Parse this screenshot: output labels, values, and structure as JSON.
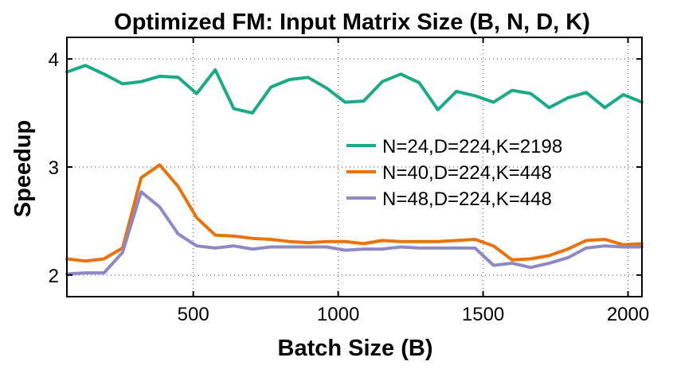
{
  "chart_data": {
    "type": "line",
    "title": "Optimized FM: Input Matrix Size (B, N, D, K)",
    "xlabel": "Batch Size (B)",
    "ylabel": "Speedup",
    "xlim": [
      64,
      2048
    ],
    "ylim": [
      1.8,
      4.2
    ],
    "xticks": [
      500,
      1000,
      1500,
      2000
    ],
    "yticks": [
      2,
      3,
      4
    ],
    "grid": true,
    "grid_style": "dotted",
    "legend_position": "center-right",
    "x": [
      64,
      128,
      192,
      256,
      320,
      384,
      448,
      512,
      576,
      640,
      704,
      768,
      832,
      896,
      960,
      1024,
      1088,
      1152,
      1216,
      1280,
      1344,
      1408,
      1472,
      1536,
      1600,
      1664,
      1728,
      1792,
      1856,
      1920,
      1984,
      2048
    ],
    "series": [
      {
        "name": "N=24,D=224,K=2198",
        "color": "#1aaa87",
        "values": [
          3.88,
          3.94,
          3.86,
          3.77,
          3.79,
          3.84,
          3.83,
          3.68,
          3.9,
          3.54,
          3.5,
          3.74,
          3.81,
          3.83,
          3.73,
          3.6,
          3.61,
          3.79,
          3.86,
          3.78,
          3.53,
          3.7,
          3.66,
          3.6,
          3.71,
          3.68,
          3.55,
          3.64,
          3.69,
          3.55,
          3.67,
          3.6
        ]
      },
      {
        "name": "N=40,D=224,K=448",
        "color": "#e8730c",
        "values": [
          2.15,
          2.13,
          2.15,
          2.25,
          2.9,
          3.02,
          2.82,
          2.53,
          2.37,
          2.36,
          2.34,
          2.33,
          2.31,
          2.3,
          2.31,
          2.31,
          2.29,
          2.32,
          2.31,
          2.31,
          2.31,
          2.32,
          2.33,
          2.27,
          2.14,
          2.15,
          2.18,
          2.24,
          2.32,
          2.33,
          2.28,
          2.29
        ]
      },
      {
        "name": "N=48,D=224,K=448",
        "color": "#8c89c4",
        "values": [
          2.01,
          2.02,
          2.02,
          2.21,
          2.77,
          2.63,
          2.38,
          2.27,
          2.25,
          2.27,
          2.24,
          2.26,
          2.26,
          2.26,
          2.26,
          2.23,
          2.24,
          2.24,
          2.26,
          2.25,
          2.25,
          2.25,
          2.25,
          2.09,
          2.11,
          2.07,
          2.11,
          2.16,
          2.25,
          2.27,
          2.26,
          2.26
        ]
      }
    ]
  }
}
